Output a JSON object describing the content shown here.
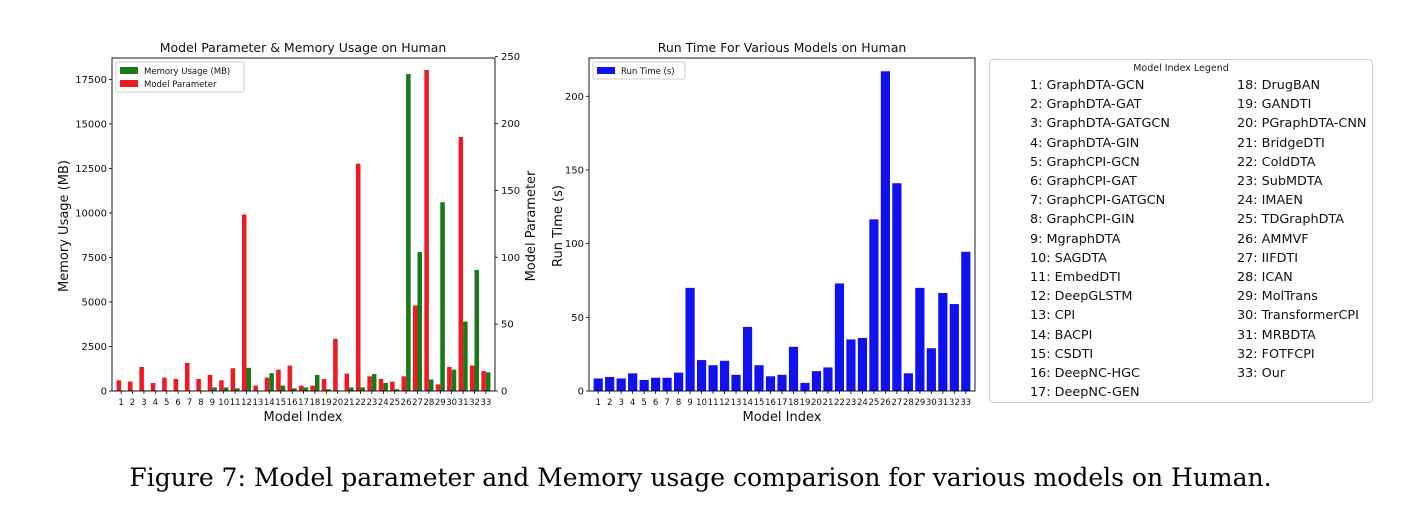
{
  "figure": {
    "caption": "Figure 7: Model parameter and Memory usage comparison for various models on Human."
  },
  "colors": {
    "memory": "#1a7a1a",
    "parameter": "#ee1b24",
    "runtime": "#1111ee"
  },
  "chart_data": [
    {
      "type": "bar",
      "title": "Model Parameter & Memory Usage on Human",
      "xlabel": "Model Index",
      "ylabel": "Memory Usage (MB)",
      "y2label": "Model Parameter",
      "categories": [
        "1",
        "2",
        "3",
        "4",
        "5",
        "6",
        "7",
        "8",
        "9",
        "10",
        "11",
        "12",
        "13",
        "14",
        "15",
        "16",
        "17",
        "18",
        "19",
        "20",
        "21",
        "22",
        "23",
        "24",
        "25",
        "26",
        "27",
        "28",
        "29",
        "30",
        "31",
        "32",
        "33"
      ],
      "ylim": [
        0,
        18700
      ],
      "y2lim": [
        0,
        249
      ],
      "yticks": [
        0,
        2500,
        5000,
        7500,
        10000,
        12500,
        15000,
        17500
      ],
      "yticklabels": [
        "0",
        "2500",
        "5000",
        "7500",
        "10000",
        "12500",
        "15000",
        "17500"
      ],
      "y2ticks": [
        0,
        50,
        100,
        150,
        200,
        250
      ],
      "y2ticklabels": [
        "0",
        "50",
        "100",
        "150",
        "200",
        "250"
      ],
      "legend": "top-left",
      "series": [
        {
          "name": "Memory Usage (MB)",
          "axis": "left",
          "values": [
            30,
            30,
            30,
            30,
            30,
            30,
            30,
            30,
            200,
            200,
            150,
            1300,
            30,
            1000,
            300,
            150,
            200,
            900,
            100,
            30,
            200,
            200,
            950,
            450,
            100,
            17800,
            7800,
            650,
            10600,
            1200,
            3900,
            6800,
            1050
          ]
        },
        {
          "name": "Model Parameter",
          "axis": "right",
          "values": [
            8,
            7,
            18,
            6,
            10,
            9,
            21,
            9,
            12,
            8,
            17,
            132,
            4,
            10,
            16,
            19,
            4,
            4,
            9,
            39,
            13,
            170,
            11,
            9,
            7,
            11,
            64,
            240,
            5,
            18,
            190,
            19,
            15
          ]
        }
      ]
    },
    {
      "type": "bar",
      "title": "Run Time For Various Models on Human",
      "xlabel": "Model Index",
      "ylabel": "Run Time (s)",
      "categories": [
        "1",
        "2",
        "3",
        "4",
        "5",
        "6",
        "7",
        "8",
        "9",
        "10",
        "11",
        "12",
        "13",
        "14",
        "15",
        "16",
        "17",
        "18",
        "19",
        "20",
        "21",
        "22",
        "23",
        "24",
        "25",
        "26",
        "27",
        "28",
        "29",
        "30",
        "31",
        "32",
        "33"
      ],
      "ylim": [
        0,
        226
      ],
      "yticks": [
        0,
        50,
        100,
        150,
        200
      ],
      "yticklabels": [
        "0",
        "50",
        "100",
        "150",
        "200"
      ],
      "legend": "top-left",
      "series": [
        {
          "name": "Run Time (s)",
          "values": [
            8.5,
            9.5,
            8.5,
            12,
            7.5,
            9,
            9,
            12.5,
            70,
            21,
            17.5,
            20.5,
            11,
            43.5,
            17.5,
            10,
            11,
            30,
            5.5,
            13.5,
            16,
            73,
            35,
            36,
            116.5,
            217,
            141,
            12,
            70,
            29,
            66.5,
            59,
            94.5
          ]
        }
      ]
    }
  ],
  "legend_panel": {
    "title": "Model Index Legend",
    "items": [
      "1: GraphDTA-GCN",
      "2: GraphDTA-GAT",
      "3: GraphDTA-GATGCN",
      "4: GraphDTA-GIN",
      "5: GraphCPI-GCN",
      "6: GraphCPI-GAT",
      "7: GraphCPI-GATGCN",
      "8: GraphCPI-GIN",
      "9: MgraphDTA",
      "10: SAGDTA",
      "11: EmbedDTI",
      "12: DeepGLSTM",
      "13: CPI",
      "14: BACPI",
      "15: CSDTI",
      "16: DeepNC-HGC",
      "17: DeepNC-GEN",
      "18: DrugBAN",
      "19: GANDTI",
      "20: PGraphDTA-CNN",
      "21: BridgeDTI",
      "22: ColdDTA",
      "23: SubMDTA",
      "24: IMAEN",
      "25: TDGraphDTA",
      "26: AMMVF",
      "27: IIFDTI",
      "28: ICAN",
      "29: MolTrans",
      "30: TransformerCPI",
      "31: MRBDTA",
      "32: FOTFCPI",
      "33: Our"
    ]
  }
}
